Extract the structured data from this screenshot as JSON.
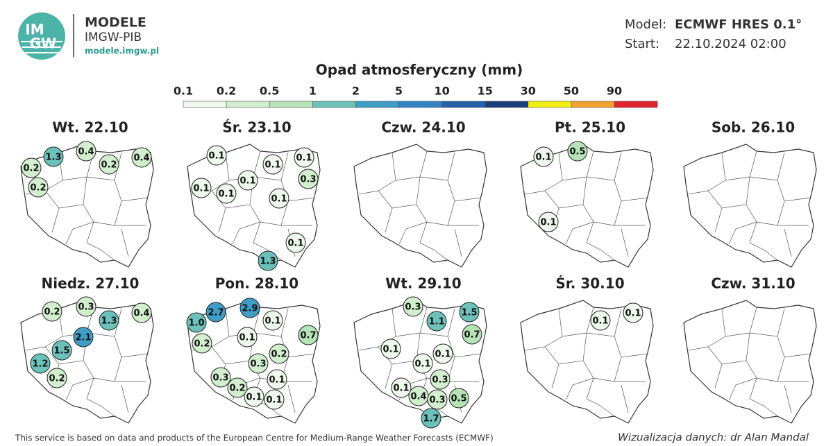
{
  "header": {
    "logo_top": "IM",
    "logo_bottom": "GW",
    "brand": "MODELE",
    "org": "IMGW-PIB",
    "url": "modele.imgw.pl",
    "model_label": "Model:",
    "model": "ECMWF HRES 0.1°",
    "start_label": "Start:",
    "start": "22.10.2024 02:00"
  },
  "legend": {
    "title": "Opad atmosferyczny (mm)",
    "ticks": [
      "0.1",
      "0.2",
      "0.5",
      "1",
      "2",
      "5",
      "10",
      "15",
      "30",
      "50",
      "90"
    ],
    "colors": [
      "#eef8ec",
      "#d3eecf",
      "#b6e2b8",
      "#6cc1bb",
      "#3f9ec6",
      "#3383c2",
      "#2460a8",
      "#183f7c",
      "#f2ee10",
      "#f0a232",
      "#e0242c"
    ]
  },
  "panels": [
    {
      "title": "Wt. 22.10",
      "values": [
        "1.3",
        "0.4",
        "0.2",
        "0.2",
        "0.4",
        "0.2"
      ]
    },
    {
      "title": "Śr. 23.10",
      "values": [
        "0.1",
        "0.1",
        "0.1",
        "0.3",
        "0.1",
        "0.1",
        "0.1",
        "0.1",
        "0.1",
        "1.3"
      ]
    },
    {
      "title": "Czw. 24.10",
      "values": []
    },
    {
      "title": "Pt. 25.10",
      "values": [
        "0.1",
        "0.5",
        "0.1"
      ]
    },
    {
      "title": "Sob. 26.10",
      "values": []
    },
    {
      "title": "Niedz. 27.10",
      "values": [
        "0.2",
        "0.3",
        "1.3",
        "0.4",
        "2.1",
        "1.5",
        "1.2",
        "0.2"
      ]
    },
    {
      "title": "Pon. 28.10",
      "values": [
        "2.7",
        "2.9",
        "1.0",
        "0.1",
        "0.1",
        "0.7",
        "0.2",
        "0.2",
        "0.3",
        "0.3",
        "0.1",
        "0.2",
        "0.1",
        "0.1"
      ]
    },
    {
      "title": "Wt. 29.10",
      "values": [
        "0.3",
        "1.1",
        "1.5",
        "0.7",
        "0.1",
        "0.1",
        "0.1",
        "0.3",
        "0.1",
        "0.4",
        "0.3",
        "0.5",
        "1.7"
      ]
    },
    {
      "title": "Śr. 30.10",
      "values": [
        "0.1",
        "0.1"
      ]
    },
    {
      "title": "Czw. 31.10",
      "values": []
    }
  ],
  "footer": {
    "source": "This service is based on data and products of the European Centre for Medium-Range Weather Forecasts (ECMWF)",
    "credit": "Wizualizacja danych: dr Alan Mandal"
  }
}
